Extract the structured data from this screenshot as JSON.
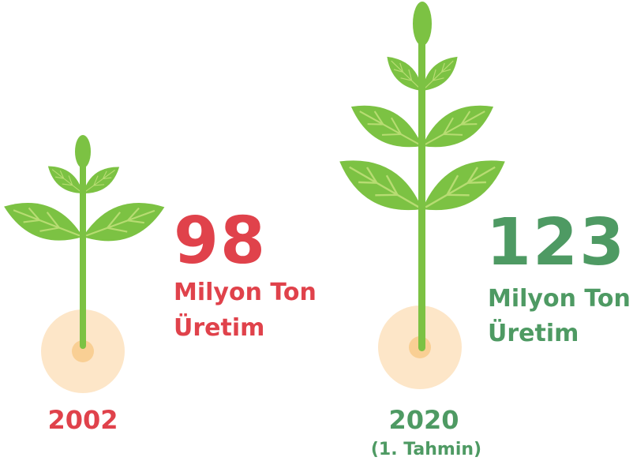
{
  "items": [
    {
      "value": 98,
      "unit": "Milyon Ton",
      "label": "Üretim",
      "year": "2002"
    },
    {
      "value": 123,
      "unit": "Milyon Ton",
      "label": "Üretim",
      "year": "2020",
      "note": "(1. Tahmin)"
    }
  ]
}
